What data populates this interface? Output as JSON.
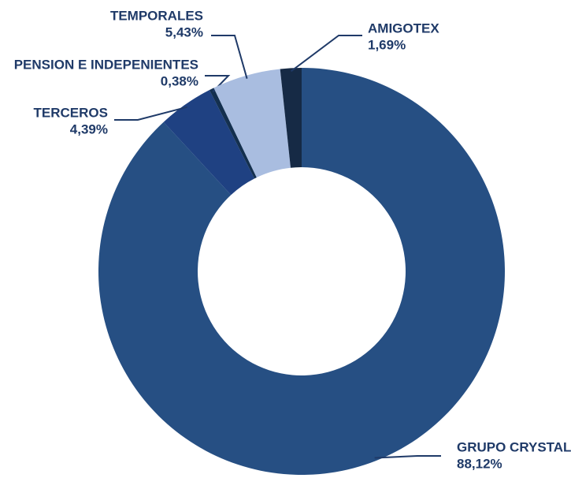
{
  "chart_data": {
    "type": "donut",
    "categories": [
      "GRUPO CRYSTAL",
      "TERCEROS",
      "PENSION E INDEPENIENTES",
      "TEMPORALES",
      "AMIGOTEX"
    ],
    "values": [
      88.12,
      4.39,
      0.38,
      5.43,
      1.69
    ],
    "value_labels": [
      "88,12%",
      "4,39%",
      "0,38%",
      "5,43%",
      "1,69%"
    ],
    "colors": [
      "#264f83",
      "#1f4182",
      "#14304f",
      "#a9bde0",
      "#162a45"
    ]
  }
}
